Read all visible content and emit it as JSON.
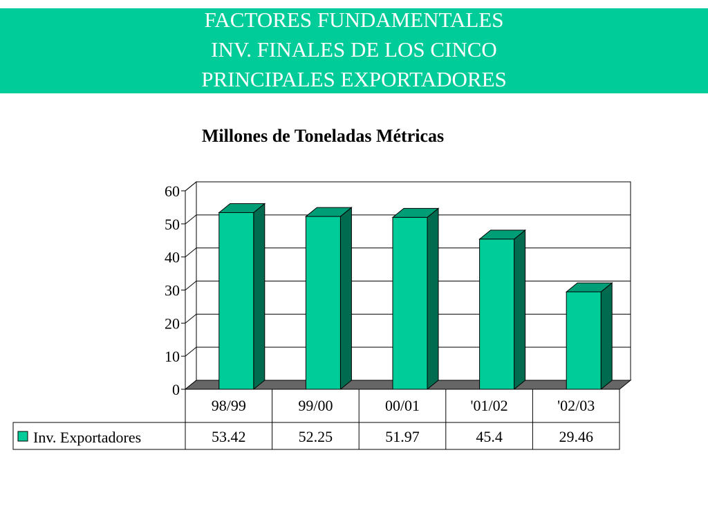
{
  "header": {
    "title_lines": [
      "FACTORES FUNDAMENTALES",
      "INV. FINALES DE LOS CINCO",
      "PRINCIPALES  EXPORTADORES"
    ],
    "band_color": "#00cc99"
  },
  "chart_data": {
    "type": "bar",
    "subtitle": "Millones de Toneladas Métricas",
    "categories": [
      "98/99",
      "99/00",
      "00/01",
      "'01/02",
      "'02/03"
    ],
    "series": [
      {
        "name": "Inv. Exportadores",
        "values": [
          53.42,
          52.25,
          51.97,
          45.4,
          29.46
        ],
        "color": "#00cc99"
      }
    ],
    "ylim": [
      0,
      60
    ],
    "yticks": [
      0,
      10,
      20,
      30,
      40,
      50,
      60
    ],
    "grid": true,
    "legend": "data-table-below",
    "three_d": true
  }
}
